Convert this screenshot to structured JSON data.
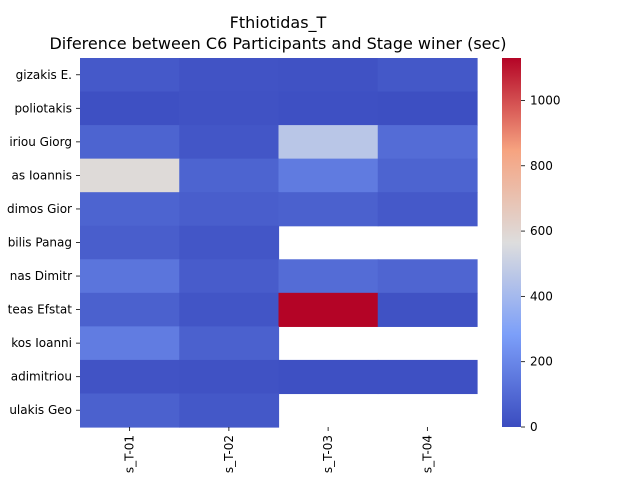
{
  "chart_data": {
    "type": "heatmap",
    "title": "Fthiotidas_T",
    "subtitle": "Diference between C6 Participants and Stage winer (sec)",
    "xlabel": "",
    "ylabel": "",
    "x_tick_labels": [
      "s_T-01",
      "s_T-02",
      "s_T-03",
      "s_T-04"
    ],
    "y_tick_labels": [
      "gizakis E.",
      "poliotakis",
      "iriou Giorg",
      "as Ioannis",
      "dimos Gior",
      "bilis Panag",
      "nas Dimitr",
      "teas Efstat",
      "kos Ioanni",
      "adimitriou",
      "ulakis Geo"
    ],
    "values": [
      [
        45,
        25,
        20,
        40
      ],
      [
        15,
        20,
        15,
        10
      ],
      [
        80,
        35,
        460,
        110
      ],
      [
        580,
        80,
        160,
        80
      ],
      [
        80,
        60,
        70,
        45
      ],
      [
        60,
        35,
        null,
        null
      ],
      [
        140,
        55,
        110,
        85
      ],
      [
        70,
        30,
        1130,
        20
      ],
      [
        165,
        70,
        null,
        null
      ],
      [
        25,
        20,
        15,
        15
      ],
      [
        70,
        40,
        null,
        null
      ]
    ],
    "colormap": "coolwarm",
    "colorbar": {
      "min": 0,
      "max": 1130,
      "ticks": [
        0,
        200,
        400,
        600,
        800,
        1000
      ],
      "low_color": "#3b4cc0",
      "mid_color": "#dddddd",
      "high_color": "#b40426"
    },
    "grid": false,
    "legend": "colorbar-right"
  }
}
